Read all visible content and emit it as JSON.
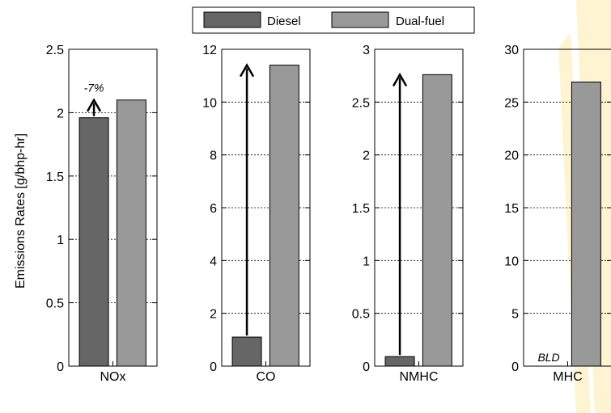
{
  "chart_data": {
    "type": "bar",
    "ylabel": "Emissions Rates [g/bhp-hr]",
    "legend": {
      "placement": "top-center",
      "entries": [
        {
          "name": "Diesel",
          "color": "#666666"
        },
        {
          "name": "Dual-fuel",
          "color": "#999999"
        }
      ]
    },
    "grid": true,
    "panels": [
      {
        "category": "NOx",
        "ylim": [
          0,
          2.5
        ],
        "yticks": [
          "0",
          "0.5",
          "1",
          "1.5",
          "2",
          "2.5"
        ],
        "values": {
          "Diesel": 1.96,
          "Dual-fuel": 2.1
        },
        "annotation": {
          "text": "-7%",
          "type": "arrow",
          "from": 1.96,
          "to": 2.1
        }
      },
      {
        "category": "CO",
        "ylim": [
          0,
          12
        ],
        "yticks": [
          "0",
          "2",
          "4",
          "6",
          "8",
          "10",
          "12"
        ],
        "values": {
          "Diesel": 1.1,
          "Dual-fuel": 11.4
        },
        "annotation": {
          "text": "",
          "type": "arrow",
          "from": 1.1,
          "to": 11.4
        }
      },
      {
        "category": "NMHC",
        "ylim": [
          0,
          3
        ],
        "yticks": [
          "0",
          "0.5",
          "1",
          "1.5",
          "2",
          "2.5",
          "3"
        ],
        "values": {
          "Diesel": 0.09,
          "Dual-fuel": 2.76
        },
        "annotation": {
          "text": "",
          "type": "arrow",
          "from": 0.09,
          "to": 2.76
        }
      },
      {
        "category": "MHC",
        "ylim": [
          0,
          30
        ],
        "yticks": [
          "0",
          "5",
          "10",
          "15",
          "20",
          "25",
          "30"
        ],
        "values": {
          "Diesel": 0,
          "Dual-fuel": 26.9
        },
        "diesel_label": "BLD"
      }
    ]
  },
  "watermark_color": "#f7c000"
}
